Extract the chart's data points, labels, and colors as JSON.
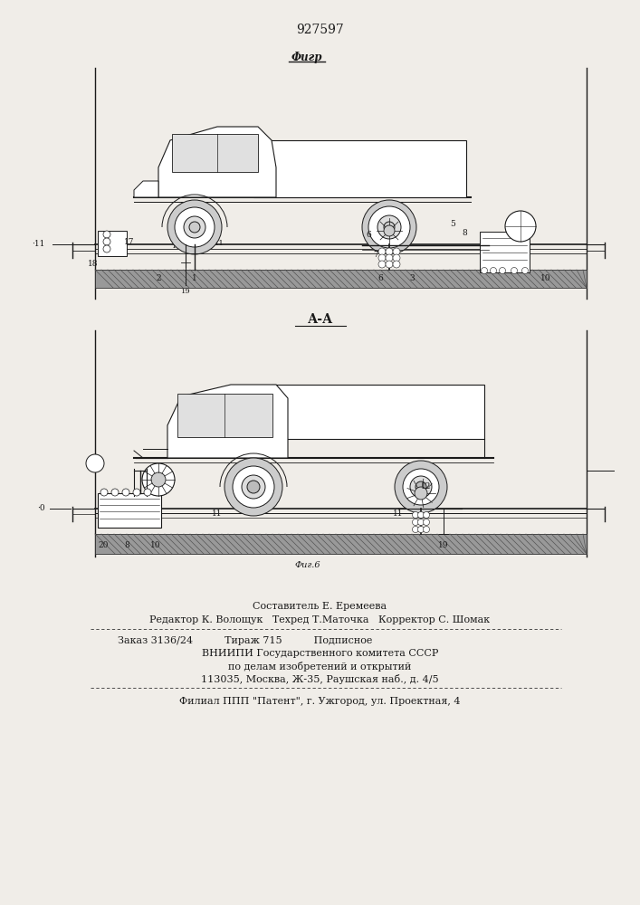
{
  "patent_number": "927597",
  "background_color": "#f0ede8",
  "drawing_color": "#1a1a1a",
  "fig1_label": "Фиг.5",
  "fig2_label": "Фиг.6",
  "section_label": "А-А",
  "fig1_title": "Фигр",
  "caption_line1": "Составитель Е. Еремеева",
  "caption_line2": "Редактор К. Волощук   Техред Т.Маточка   Корректор С. Шомак",
  "caption_line3": "Заказ 3136/24          Тираж 715          Подписное",
  "caption_line4": "ВНИИПИ Государственного комитета СССР",
  "caption_line5": "по делам изобретений и открытий",
  "caption_line6": "113035, Москва, Ж-35, Раушская наб., д. 4/5",
  "caption_line7": "Филиал ППП \"Патент\", г. Ужгород, ул. Проектная, 4",
  "font_size_patent": 10,
  "font_size_caption": 8,
  "font_size_small": 6.5
}
